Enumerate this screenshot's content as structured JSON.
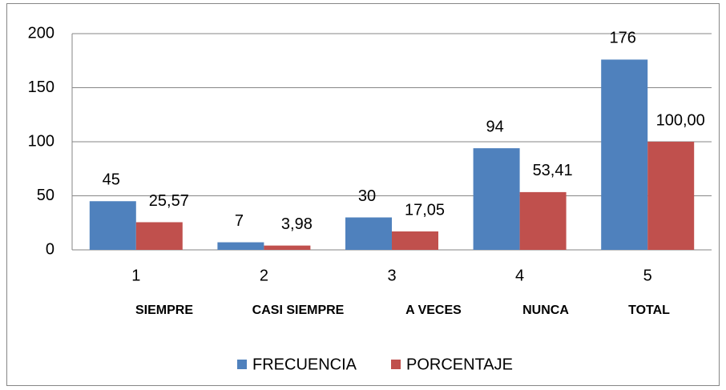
{
  "chart_data": {
    "type": "bar",
    "categories": [
      "1",
      "2",
      "3",
      "4",
      "5"
    ],
    "category_names": [
      "SIEMPRE",
      "CASI SIEMPRE",
      "A VECES",
      "NUNCA",
      "TOTAL"
    ],
    "series": [
      {
        "name": "FRECUENCIA",
        "color": "#4f81bd",
        "values": [
          45,
          7,
          30,
          94,
          176
        ]
      },
      {
        "name": "PORCENTAJE",
        "color": "#c0504d",
        "values": [
          25.57,
          3.98,
          17.05,
          53.41,
          100
        ],
        "value_labels": [
          "25,57",
          "3,98",
          "17,05",
          "53,41",
          "100,00"
        ]
      }
    ],
    "ylim": [
      0,
      200
    ],
    "yticks": [
      0,
      50,
      100,
      150,
      200
    ],
    "grid": true,
    "legend": "bottom"
  }
}
